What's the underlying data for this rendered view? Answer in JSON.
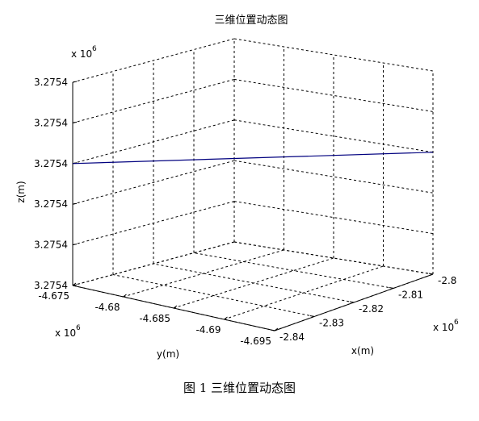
{
  "caption": "图 1  三维位置动态图",
  "chart_data": {
    "type": "line",
    "title": "三维位置动态图",
    "xlabel": "x(m)",
    "ylabel": "y(m)",
    "zlabel": "z(m)",
    "x_multiplier": "x 10^6",
    "y_multiplier": "x 10^6",
    "z_multiplier": "x 10^6",
    "x_ticks": [
      "-2.8",
      "-2.81",
      "-2.82",
      "-2.83",
      "-2.84"
    ],
    "y_ticks": [
      "-4.675",
      "-4.68",
      "-4.685",
      "-4.69",
      "-4.695"
    ],
    "z_ticks": [
      "3.2754",
      "3.2754",
      "3.2754",
      "3.2754",
      "3.2754",
      "3.2754"
    ],
    "xlim": [
      -2.84,
      -2.8
    ],
    "ylim": [
      -4.695,
      -4.675
    ],
    "grid": true,
    "line_color": "#00007f",
    "series": [
      {
        "x": [
          -2.84,
          -2.8
        ],
        "y": [
          -4.675,
          -4.695
        ],
        "z_level": 0.6
      }
    ]
  }
}
